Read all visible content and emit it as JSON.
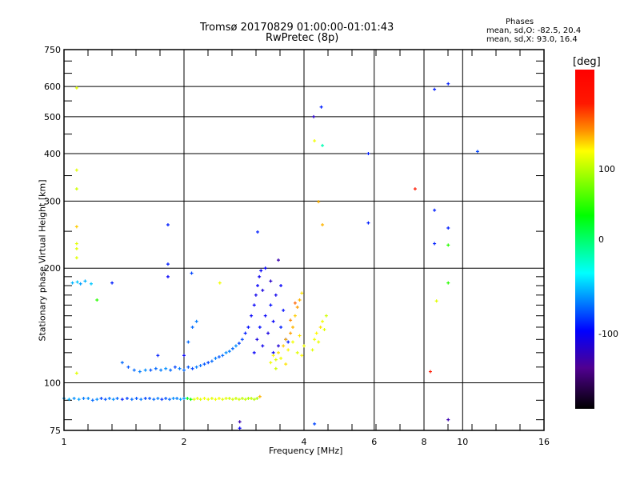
{
  "title": {
    "line1": "Tromsø 20170829 01:00:00-01:01:43",
    "line2": "RwPretec (8p)"
  },
  "phase_stats": {
    "heading": "Phases",
    "o_line": "mean, sd,O: -82.5, 20.4",
    "x_line": "mean, sd,X:  93.0, 16.4"
  },
  "chart_data": {
    "type": "scatter",
    "title": "Tromsø 20170829 01:00:00-01:01:43 RwPretec (8p)",
    "xlabel": "Frequency [MHz]",
    "ylabel": "Stationary phase Virtual Height [km]",
    "xscale": "log",
    "yscale": "log",
    "xlim": [
      1,
      16
    ],
    "ylim": [
      75,
      750
    ],
    "xticks": [
      "1",
      "2",
      "4",
      "6",
      "8",
      "10",
      "16"
    ],
    "xtick_values": [
      1,
      2,
      4,
      6,
      8,
      10,
      16
    ],
    "yticks": [
      "75",
      "100",
      "200",
      "300",
      "400",
      "500",
      "600",
      "750"
    ],
    "ytick_values": [
      75,
      100,
      200,
      300,
      400,
      500,
      600,
      750
    ],
    "grid": true,
    "colorbar": {
      "label": "[deg]",
      "range": [
        -200,
        200
      ],
      "ticks": [
        "100",
        "0",
        "-100"
      ],
      "stops": [
        [
          "#ff0000",
          0
        ],
        [
          "#ff1800",
          0.1
        ],
        [
          "#ff9000",
          0.18
        ],
        [
          "#ffff00",
          0.24
        ],
        [
          "#00ff00",
          0.43
        ],
        [
          "#00ffff",
          0.6
        ],
        [
          "#0000ff",
          0.77
        ],
        [
          "#500090",
          0.88
        ],
        [
          "#000000",
          1
        ]
      ]
    },
    "point_fields": [
      "frequency_MHz",
      "virtual_height_km",
      "phase_deg"
    ],
    "points": [
      [
        1.0,
        91,
        -65
      ],
      [
        1.03,
        90.5,
        -60
      ],
      [
        1.06,
        91,
        -70
      ],
      [
        1.09,
        90.5,
        -65
      ],
      [
        1.12,
        91,
        -75
      ],
      [
        1.15,
        91,
        -70
      ],
      [
        1.18,
        90,
        -80
      ],
      [
        1.21,
        90.5,
        -70
      ],
      [
        1.24,
        91,
        -90
      ],
      [
        1.27,
        90.5,
        -85
      ],
      [
        1.3,
        91,
        -75
      ],
      [
        1.33,
        90.5,
        -70
      ],
      [
        1.36,
        91,
        -80
      ],
      [
        1.4,
        90.5,
        -100
      ],
      [
        1.44,
        91,
        -90
      ],
      [
        1.48,
        90.5,
        -80
      ],
      [
        1.52,
        91,
        -85
      ],
      [
        1.56,
        90.5,
        -75
      ],
      [
        1.6,
        91,
        -90
      ],
      [
        1.64,
        91,
        -85
      ],
      [
        1.68,
        90.5,
        -80
      ],
      [
        1.72,
        91,
        -75
      ],
      [
        1.76,
        90.5,
        -95
      ],
      [
        1.8,
        91,
        -85
      ],
      [
        1.84,
        90.5,
        -80
      ],
      [
        1.88,
        91,
        -70
      ],
      [
        1.92,
        91,
        -75
      ],
      [
        1.96,
        90.5,
        -65
      ],
      [
        2.0,
        91,
        -70
      ],
      [
        2.04,
        91,
        20
      ],
      [
        2.08,
        90.5,
        30
      ],
      [
        2.12,
        90.5,
        95
      ],
      [
        2.16,
        91,
        100
      ],
      [
        2.2,
        90.5,
        95
      ],
      [
        2.25,
        91,
        100
      ],
      [
        2.3,
        90.5,
        98
      ],
      [
        2.35,
        91,
        95
      ],
      [
        2.4,
        90.5,
        100
      ],
      [
        2.45,
        91,
        102
      ],
      [
        2.5,
        90.5,
        96
      ],
      [
        2.55,
        91,
        95
      ],
      [
        2.6,
        91,
        90
      ],
      [
        2.65,
        90.5,
        92
      ],
      [
        2.7,
        91,
        88
      ],
      [
        2.75,
        90.5,
        90
      ],
      [
        2.8,
        91,
        85
      ],
      [
        2.85,
        90.5,
        88
      ],
      [
        2.9,
        91,
        80
      ],
      [
        2.95,
        91,
        85
      ],
      [
        3.0,
        90.5,
        82
      ],
      [
        3.05,
        91,
        78
      ],
      [
        3.1,
        92,
        120
      ],
      [
        1.4,
        113,
        -80
      ],
      [
        1.45,
        110,
        -85
      ],
      [
        1.5,
        108,
        -80
      ],
      [
        1.55,
        107,
        -75
      ],
      [
        1.6,
        108,
        -70
      ],
      [
        1.65,
        108,
        -85
      ],
      [
        1.7,
        109,
        -80
      ],
      [
        1.75,
        108,
        -75
      ],
      [
        1.8,
        109,
        -70
      ],
      [
        1.85,
        108,
        -80
      ],
      [
        1.9,
        110,
        -90
      ],
      [
        1.95,
        109,
        -75
      ],
      [
        2.0,
        108,
        -80
      ],
      [
        2.05,
        110,
        -85
      ],
      [
        2.1,
        109,
        -90
      ],
      [
        2.15,
        110,
        -75
      ],
      [
        2.2,
        111,
        -80
      ],
      [
        2.25,
        112,
        -85
      ],
      [
        2.3,
        113,
        -90
      ],
      [
        2.35,
        114,
        -80
      ],
      [
        2.4,
        116,
        -75
      ],
      [
        2.45,
        117,
        -85
      ],
      [
        2.5,
        118,
        -80
      ],
      [
        2.55,
        120,
        -70
      ],
      [
        2.6,
        121,
        -75
      ],
      [
        2.65,
        123,
        -80
      ],
      [
        2.7,
        125,
        -70
      ],
      [
        2.75,
        127,
        -90
      ],
      [
        2.8,
        130,
        -90
      ],
      [
        2.85,
        135,
        -100
      ],
      [
        2.9,
        140,
        -105
      ],
      [
        2.95,
        150,
        -110
      ],
      [
        3.0,
        160,
        -110
      ],
      [
        3.03,
        170,
        -115
      ],
      [
        3.06,
        180,
        -110
      ],
      [
        3.09,
        190,
        -115
      ],
      [
        3.12,
        197,
        -110
      ],
      [
        2.1,
        140,
        -80
      ],
      [
        2.15,
        145,
        -75
      ],
      [
        2.05,
        128,
        -80
      ],
      [
        2.0,
        118,
        -110
      ],
      [
        1.72,
        118,
        -100
      ],
      [
        3.0,
        120,
        -110
      ],
      [
        3.05,
        130,
        -120
      ],
      [
        3.1,
        140,
        -105
      ],
      [
        3.15,
        125,
        -115
      ],
      [
        3.2,
        150,
        -110
      ],
      [
        3.25,
        135,
        -120
      ],
      [
        3.3,
        160,
        -105
      ],
      [
        3.35,
        145,
        -110
      ],
      [
        3.4,
        170,
        -115
      ],
      [
        3.45,
        125,
        -125
      ],
      [
        3.5,
        180,
        -110
      ],
      [
        3.5,
        140,
        -100
      ],
      [
        3.55,
        155,
        -105
      ],
      [
        3.6,
        130,
        -110
      ],
      [
        3.3,
        185,
        -130
      ],
      [
        3.45,
        210,
        -140
      ],
      [
        3.2,
        200,
        -110
      ],
      [
        3.15,
        175,
        -120
      ],
      [
        3.35,
        120,
        -110
      ],
      [
        3.65,
        128,
        -100
      ],
      [
        3.3,
        113,
        100
      ],
      [
        3.35,
        118,
        105
      ],
      [
        3.4,
        115,
        95
      ],
      [
        3.45,
        120,
        110
      ],
      [
        3.5,
        116,
        100
      ],
      [
        3.55,
        125,
        115
      ],
      [
        3.6,
        130,
        120
      ],
      [
        3.65,
        122,
        105
      ],
      [
        3.7,
        135,
        125
      ],
      [
        3.75,
        140,
        120
      ],
      [
        3.8,
        150,
        115
      ],
      [
        3.85,
        158,
        125
      ],
      [
        3.9,
        165,
        120
      ],
      [
        3.95,
        172,
        110
      ],
      [
        3.75,
        128,
        100
      ],
      [
        3.85,
        120,
        95
      ],
      [
        3.9,
        133,
        110
      ],
      [
        3.95,
        118,
        105
      ],
      [
        4.0,
        125,
        100
      ],
      [
        3.6,
        112,
        110
      ],
      [
        3.7,
        146,
        130
      ],
      [
        3.8,
        162,
        140
      ],
      [
        3.4,
        109,
        90
      ],
      [
        4.2,
        122,
        95
      ],
      [
        4.25,
        130,
        100
      ],
      [
        4.3,
        135,
        105
      ],
      [
        4.35,
        128,
        98
      ],
      [
        4.4,
        140,
        110
      ],
      [
        4.45,
        145,
        100
      ],
      [
        4.5,
        138,
        95
      ],
      [
        4.55,
        150,
        90
      ],
      [
        1.05,
        183,
        -60
      ],
      [
        1.08,
        184,
        -55
      ],
      [
        1.1,
        182,
        -65
      ],
      [
        1.13,
        185,
        -60
      ],
      [
        1.17,
        182,
        -55
      ],
      [
        1.32,
        183,
        -100
      ],
      [
        1.21,
        165,
        40
      ],
      [
        1.076,
        106,
        95
      ],
      [
        1.076,
        595,
        95
      ],
      [
        1.076,
        362,
        95
      ],
      [
        1.076,
        323,
        90
      ],
      [
        1.076,
        257,
        115
      ],
      [
        1.076,
        232,
        95
      ],
      [
        1.076,
        225,
        95
      ],
      [
        1.076,
        213,
        95
      ],
      [
        1.823,
        260,
        -100
      ],
      [
        1.823,
        205,
        -100
      ],
      [
        1.823,
        190,
        -110
      ],
      [
        2.09,
        194,
        -90
      ],
      [
        2.46,
        183,
        100
      ],
      [
        3.06,
        249,
        -100
      ],
      [
        4.23,
        500,
        -130
      ],
      [
        4.42,
        530,
        -100
      ],
      [
        4.25,
        432,
        100
      ],
      [
        4.45,
        420,
        -20
      ],
      [
        4.35,
        299,
        120
      ],
      [
        4.45,
        260,
        120
      ],
      [
        5.8,
        400,
        -100
      ],
      [
        5.8,
        263,
        -100
      ],
      [
        7.6,
        323,
        160
      ],
      [
        8.5,
        590,
        -100
      ],
      [
        9.2,
        610,
        -100
      ],
      [
        10.9,
        405,
        -90
      ],
      [
        8.5,
        284,
        -100
      ],
      [
        8.5,
        232,
        -100
      ],
      [
        9.2,
        255,
        -100
      ],
      [
        9.2,
        230,
        40
      ],
      [
        9.2,
        183,
        40
      ],
      [
        8.6,
        164,
        95
      ],
      [
        8.3,
        107,
        160
      ],
      [
        9.2,
        80,
        -140
      ],
      [
        4.25,
        78,
        -90
      ],
      [
        2.76,
        79,
        -140
      ],
      [
        2.76,
        76,
        -110
      ]
    ]
  }
}
